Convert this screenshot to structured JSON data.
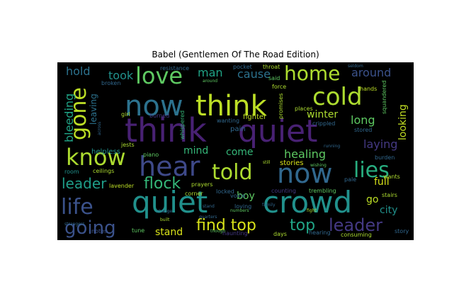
{
  "title": "Babel (Gentlemen Of The Road Edition)",
  "background": "#000000",
  "palette": [
    "#440154",
    "#472c7a",
    "#3b518b",
    "#2c718e",
    "#21908d",
    "#27ad81",
    "#5cc863",
    "#aadc32",
    "#fde725"
  ],
  "words": [
    {
      "text": "think",
      "weight": 46,
      "color": "#482173"
    },
    {
      "text": "quiet",
      "weight": 44,
      "color": "#482173"
    },
    {
      "text": "quiet",
      "weight": 42,
      "color": "#21918c"
    },
    {
      "text": "crowd",
      "weight": 42,
      "color": "#21918c"
    },
    {
      "text": "think",
      "weight": 40,
      "color": "#bddf26"
    },
    {
      "text": "now",
      "weight": 40,
      "color": "#2c728e"
    },
    {
      "text": "hear",
      "weight": 38,
      "color": "#3e4989"
    },
    {
      "text": "now",
      "weight": 38,
      "color": "#31688e"
    },
    {
      "text": "cold",
      "weight": 34,
      "color": "#addc30"
    },
    {
      "text": "love",
      "weight": 32,
      "color": "#5ec962"
    },
    {
      "text": "home",
      "weight": 28,
      "color": "#addc30"
    },
    {
      "text": "know",
      "weight": 32,
      "color": "#addc30"
    },
    {
      "text": "told",
      "weight": 30,
      "color": "#addc30"
    },
    {
      "text": "lies",
      "weight": 30,
      "color": "#28ae80"
    },
    {
      "text": "life",
      "weight": 30,
      "color": "#3b528b"
    },
    {
      "text": "gone",
      "weight": 30,
      "color": "#bddf26"
    },
    {
      "text": "going",
      "weight": 26,
      "color": "#3b528b"
    },
    {
      "text": "find top",
      "weight": 22,
      "color": "#d8e219"
    },
    {
      "text": "leader",
      "weight": 24,
      "color": "#443983"
    },
    {
      "text": "flock",
      "weight": 22,
      "color": "#35b779"
    },
    {
      "text": "leader",
      "weight": 20,
      "color": "#1f9e89"
    },
    {
      "text": "top",
      "weight": 22,
      "color": "#20a486"
    },
    {
      "text": "cause",
      "weight": 16,
      "color": "#2c728e"
    },
    {
      "text": "man",
      "weight": 16,
      "color": "#20a486"
    },
    {
      "text": "around",
      "weight": 16,
      "color": "#3b528b"
    },
    {
      "text": "took",
      "weight": 16,
      "color": "#21918c"
    },
    {
      "text": "hold",
      "weight": 16,
      "color": "#2c728e"
    },
    {
      "text": "bleeding",
      "weight": 16,
      "color": "#20a486"
    },
    {
      "text": "leaving",
      "weight": 12,
      "color": "#2c728e"
    },
    {
      "text": "long",
      "weight": 16,
      "color": "#5ec962"
    },
    {
      "text": "winter",
      "weight": 14,
      "color": "#addc30"
    },
    {
      "text": "looking",
      "weight": 14,
      "color": "#c2df23"
    },
    {
      "text": "laying",
      "weight": 16,
      "color": "#443983"
    },
    {
      "text": "healing",
      "weight": 16,
      "color": "#5ec962"
    },
    {
      "text": "come",
      "weight": 14,
      "color": "#35b779"
    },
    {
      "text": "mind",
      "weight": 14,
      "color": "#35b779"
    },
    {
      "text": "boy",
      "weight": 14,
      "color": "#5ec962"
    },
    {
      "text": "stand",
      "weight": 14,
      "color": "#d8e219"
    },
    {
      "text": "full",
      "weight": 14,
      "color": "#d8e219"
    },
    {
      "text": "go",
      "weight": 14,
      "color": "#bddf26"
    },
    {
      "text": "city",
      "weight": 14,
      "color": "#21918c"
    },
    {
      "text": "stories",
      "weight": 10,
      "color": "#d8e219"
    },
    {
      "text": "fighter",
      "weight": 10,
      "color": "#bddf26"
    },
    {
      "text": "pain",
      "weight": 10,
      "color": "#31688e"
    },
    {
      "text": "helpless",
      "weight": 10,
      "color": "#21918c"
    },
    {
      "text": "room",
      "weight": 8,
      "color": "#21918c"
    },
    {
      "text": "ceilings",
      "weight": 8,
      "color": "#addc30"
    },
    {
      "text": "lavender",
      "weight": 8,
      "color": "#bddf26"
    },
    {
      "text": "counting",
      "weight": 8,
      "color": "#443983"
    },
    {
      "text": "trembling",
      "weight": 8,
      "color": "#5ec962"
    },
    {
      "text": "hearing",
      "weight": 8,
      "color": "#31688e"
    },
    {
      "text": "consuming",
      "weight": 8,
      "color": "#addc30"
    },
    {
      "text": "haunting",
      "weight": 8,
      "color": "#443983"
    },
    {
      "text": "days",
      "weight": 8,
      "color": "#addc30"
    },
    {
      "text": "tune",
      "weight": 8,
      "color": "#5ec962"
    },
    {
      "text": "notes",
      "weight": 8,
      "color": "#3b528b"
    },
    {
      "text": "corner",
      "weight": 8,
      "color": "#addc30"
    },
    {
      "text": "prayers",
      "weight": 8,
      "color": "#addc30"
    },
    {
      "text": "piano",
      "weight": 8,
      "color": "#5ec962"
    },
    {
      "text": "whispered",
      "weight": 8,
      "color": "#35b779"
    },
    {
      "text": "girl",
      "weight": 8,
      "color": "#addc30"
    },
    {
      "text": "resistance",
      "weight": 8,
      "color": "#31688e"
    },
    {
      "text": "throat",
      "weight": 8,
      "color": "#addc30"
    },
    {
      "text": "pocket",
      "weight": 8,
      "color": "#31688e"
    },
    {
      "text": "force",
      "weight": 8,
      "color": "#addc30"
    },
    {
      "text": "said",
      "weight": 8,
      "color": "#5ec962"
    },
    {
      "text": "hands",
      "weight": 8,
      "color": "#bddf26"
    },
    {
      "text": "squandered",
      "weight": 8,
      "color": "#5ec962"
    },
    {
      "text": "stored",
      "weight": 8,
      "color": "#31688e"
    },
    {
      "text": "burden",
      "weight": 8,
      "color": "#31688e"
    },
    {
      "text": "stairs",
      "weight": 8,
      "color": "#addc30"
    },
    {
      "text": "story",
      "weight": 8,
      "color": "#31688e"
    },
    {
      "text": "pale",
      "weight": 8,
      "color": "#31688e"
    },
    {
      "text": "wants",
      "weight": 8,
      "color": "#addc30"
    },
    {
      "text": "jests",
      "weight": 8,
      "color": "#addc30"
    },
    {
      "text": "broken",
      "weight": 8,
      "color": "#31688e"
    },
    {
      "text": "wanting",
      "weight": 8,
      "color": "#31688e"
    },
    {
      "text": "burned",
      "weight": 8,
      "color": "#443983"
    },
    {
      "text": "promises",
      "weight": 8,
      "color": "#addc30"
    },
    {
      "text": "places",
      "weight": 8,
      "color": "#addc30"
    },
    {
      "text": "crippled",
      "weight": 8,
      "color": "#31688e"
    },
    {
      "text": "locked",
      "weight": 8,
      "color": "#31688e"
    },
    {
      "text": "loving",
      "weight": 8,
      "color": "#31688e"
    },
    {
      "text": "voice",
      "weight": 8,
      "color": "#31688e"
    },
    {
      "text": "numbers",
      "weight": 6,
      "color": "#5ec962"
    },
    {
      "text": "change",
      "weight": 6,
      "color": "#31688e"
    },
    {
      "text": "built",
      "weight": 6,
      "color": "#addc30"
    },
    {
      "text": "though",
      "weight": 6,
      "color": "#5ec962"
    },
    {
      "text": "fight",
      "weight": 6,
      "color": "#addc30"
    },
    {
      "text": "seldom",
      "weight": 6,
      "color": "#31688e"
    },
    {
      "text": "across",
      "weight": 6,
      "color": "#31688e"
    },
    {
      "text": "still",
      "weight": 6,
      "color": "#addc30"
    },
    {
      "text": "around",
      "weight": 6,
      "color": "#5ec962"
    },
    {
      "text": "stand",
      "weight": 6,
      "color": "#31688e"
    },
    {
      "text": "running",
      "weight": 6,
      "color": "#31688e"
    },
    {
      "text": "wishing",
      "weight": 6,
      "color": "#5ec962"
    },
    {
      "text": "family",
      "weight": 6,
      "color": "#31688e"
    },
    {
      "text": "quarters",
      "weight": 6,
      "color": "#31688e"
    },
    {
      "text": "strangers",
      "weight": 6,
      "color": "#31688e"
    }
  ]
}
